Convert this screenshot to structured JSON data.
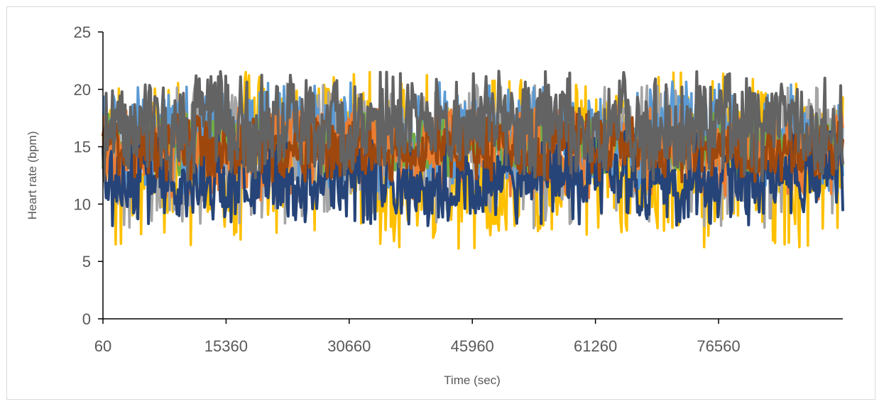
{
  "chart_data": {
    "type": "line",
    "title": "",
    "xlabel": "Time (sec)",
    "ylabel": "Heart rate (bpm)",
    "ylim": [
      0,
      25
    ],
    "xlim": [
      60,
      92000
    ],
    "y_ticks": [
      "0",
      "5",
      "10",
      "15",
      "20",
      "25"
    ],
    "x_ticks": [
      "60",
      "15360",
      "30660",
      "45960",
      "61260",
      "76560"
    ],
    "grid": false,
    "legend": "none",
    "series": [
      {
        "color": "#FFC000",
        "mean": 13.8,
        "amp": 5.5,
        "seed": 3
      },
      {
        "color": "#A5A5A5",
        "mean": 14.2,
        "amp": 4.5,
        "seed": 7
      },
      {
        "color": "#5B9BD5",
        "mean": 15.8,
        "amp": 3.5,
        "seed": 11
      },
      {
        "color": "#70AD47",
        "mean": 15.2,
        "amp": 2.0,
        "seed": 17
      },
      {
        "color": "#ED7D31",
        "mean": 14.5,
        "amp": 3.0,
        "seed": 23
      },
      {
        "color": "#264478",
        "mean": 12.3,
        "amp": 3.0,
        "seed": 29
      },
      {
        "color": "#9E480E",
        "mean": 15.0,
        "amp": 2.2,
        "seed": 37
      },
      {
        "color": "#636363",
        "mean": 16.8,
        "amp": 3.5,
        "seed": 41
      }
    ]
  }
}
